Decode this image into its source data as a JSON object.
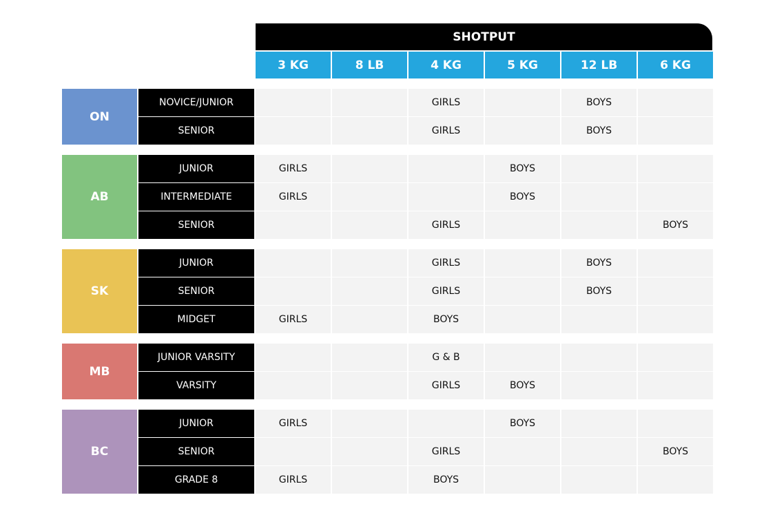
{
  "title": "SHOTPUT",
  "columns": [
    "3 KG",
    "8 LB",
    "4 KG",
    "5 KG",
    "12 LB",
    "6 KG"
  ],
  "colors": {
    "header": "#000000",
    "column_header": "#24a6de",
    "cell": "#f3f3f3"
  },
  "groups": [
    {
      "province": "ON",
      "color": "#6b93cf",
      "rows": [
        {
          "level": "NOVICE/JUNIOR",
          "cells": [
            "",
            "",
            "GIRLS",
            "",
            "BOYS",
            ""
          ]
        },
        {
          "level": "SENIOR",
          "cells": [
            "",
            "",
            "GIRLS",
            "",
            "BOYS",
            ""
          ]
        }
      ]
    },
    {
      "province": "AB",
      "color": "#82c37f",
      "rows": [
        {
          "level": "JUNIOR",
          "cells": [
            "GIRLS",
            "",
            "",
            "BOYS",
            "",
            ""
          ]
        },
        {
          "level": "INTERMEDIATE",
          "cells": [
            "GIRLS",
            "",
            "",
            "BOYS",
            "",
            ""
          ]
        },
        {
          "level": "SENIOR",
          "cells": [
            "",
            "",
            "GIRLS",
            "",
            "",
            "BOYS"
          ]
        }
      ]
    },
    {
      "province": "SK",
      "color": "#e9c355",
      "rows": [
        {
          "level": "JUNIOR",
          "cells": [
            "",
            "",
            "GIRLS",
            "",
            "BOYS",
            ""
          ]
        },
        {
          "level": "SENIOR",
          "cells": [
            "",
            "",
            "GIRLS",
            "",
            "BOYS",
            ""
          ]
        },
        {
          "level": "MIDGET",
          "cells": [
            "GIRLS",
            "",
            "BOYS",
            "",
            "",
            ""
          ]
        }
      ]
    },
    {
      "province": "MB",
      "color": "#d97872",
      "rows": [
        {
          "level": "JUNIOR VARSITY",
          "cells": [
            "",
            "",
            "G & B",
            "",
            "",
            ""
          ]
        },
        {
          "level": "VARSITY",
          "cells": [
            "",
            "",
            "GIRLS",
            "BOYS",
            "",
            ""
          ]
        }
      ]
    },
    {
      "province": "BC",
      "color": "#ad93bb",
      "rows": [
        {
          "level": "JUNIOR",
          "cells": [
            "GIRLS",
            "",
            "",
            "BOYS",
            "",
            ""
          ]
        },
        {
          "level": "SENIOR",
          "cells": [
            "",
            "",
            "GIRLS",
            "",
            "",
            "BOYS"
          ]
        },
        {
          "level": "GRADE 8",
          "cells": [
            "GIRLS",
            "",
            "BOYS",
            "",
            "",
            ""
          ]
        }
      ]
    }
  ]
}
